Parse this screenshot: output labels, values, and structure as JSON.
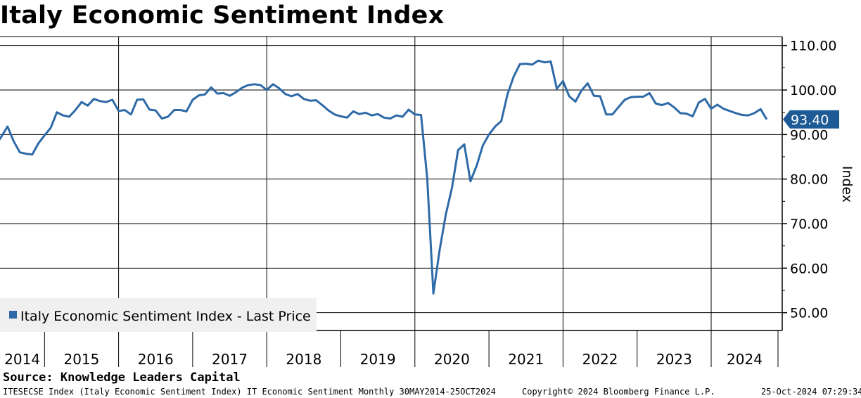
{
  "chart_data": {
    "type": "line",
    "title": "Italy Economic Sentiment Index",
    "ylabel": "Index",
    "xlabel": "",
    "ylim": [
      46,
      112
    ],
    "yticks": [
      "110.00",
      "100.00",
      "90.00",
      "80.00",
      "70.00",
      "60.00",
      "50.00"
    ],
    "ytick_values": [
      110,
      100,
      90,
      80,
      70,
      60,
      50
    ],
    "x_years": [
      "2014",
      "2015",
      "2016",
      "2017",
      "2018",
      "2019",
      "2020",
      "2021",
      "2022",
      "2023",
      "2024"
    ],
    "x_range": [
      "2014-05",
      "2024-10"
    ],
    "legend": "Italy Economic Sentiment Index - Last Price",
    "last_price": 93.4,
    "last_price_label": "93.40",
    "line_color": "#2e6aa8",
    "series": [
      {
        "name": "Italy Economic Sentiment Index - Last Price",
        "start": "2014-05",
        "values": [
          87.5,
          89.5,
          91.8,
          88.5,
          86.0,
          85.7,
          85.5,
          88.0,
          89.8,
          91.5,
          95.0,
          94.3,
          94.0,
          95.5,
          97.3,
          96.5,
          98.0,
          97.5,
          97.3,
          97.8,
          95.3,
          95.5,
          94.5,
          97.8,
          97.9,
          95.6,
          95.4,
          93.6,
          94.0,
          95.5,
          95.5,
          95.2,
          97.8,
          98.8,
          99.0,
          100.6,
          99.2,
          99.3,
          98.7,
          99.5,
          100.5,
          101.1,
          101.3,
          101.1,
          100.0,
          101.3,
          100.4,
          99.1,
          98.6,
          99.1,
          98.0,
          97.6,
          97.7,
          96.6,
          95.4,
          94.5,
          94.1,
          93.8,
          95.2,
          94.6,
          94.9,
          94.3,
          94.6,
          93.8,
          93.6,
          94.3,
          94.0,
          95.6,
          94.5,
          94.4,
          80.0,
          54.3,
          64.0,
          72.0,
          78.0,
          86.5,
          87.8,
          79.5,
          83.0,
          87.5,
          90.0,
          91.8,
          93.0,
          99.0,
          103.0,
          105.8,
          105.9,
          105.7,
          106.6,
          106.2,
          106.4,
          100.3,
          102.0,
          98.6,
          97.4,
          99.9,
          101.5,
          98.7,
          98.6,
          94.5,
          94.5,
          96.2,
          97.8,
          98.4,
          98.5,
          98.5,
          99.3,
          97.0,
          96.6,
          97.1,
          96.1,
          94.8,
          94.7,
          94.1,
          97.2,
          98.0,
          95.8,
          96.7,
          95.8,
          95.3,
          94.8,
          94.4,
          94.3,
          94.8,
          95.7,
          93.4
        ]
      }
    ]
  },
  "source": "Source: Knowledge Leaders Capital",
  "footer": {
    "left": "ITESECSE Index (Italy Economic Sentiment Index) IT Economic Sentiment  Monthly 30MAY2014-25OCT2024",
    "center": "Copyright© 2024 Bloomberg Finance L.P.",
    "right": "25-Oct-2024 07:29:34"
  }
}
